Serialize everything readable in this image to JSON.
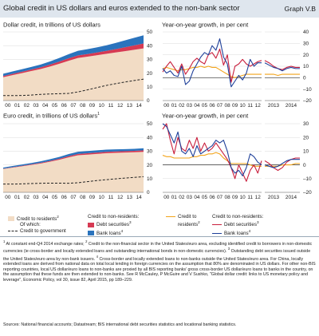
{
  "header": {
    "title": "Global credit in US dollars and euros extended to the non-bank sector",
    "graph_id": "Graph V.B"
  },
  "colors": {
    "credit_to_residents": "#f2dcc5",
    "debt_securities": "#d63a53",
    "bank_loans": "#2a73bd",
    "government": "#222222",
    "growth_residents": "#f2a31a",
    "growth_debt": "#c81e3c",
    "growth_loans": "#1e3f99",
    "zero_line": "#333333"
  },
  "chart_data": [
    {
      "id": "dollar-levels",
      "type": "area",
      "title": "Dollar credit, in trillions of US dollars",
      "title_sup": "",
      "ylim": [
        0,
        50
      ],
      "yticks": [
        "0",
        "10",
        "20",
        "30",
        "40",
        "50"
      ],
      "xticks": [
        "00",
        "01",
        "02",
        "03",
        "04",
        "05",
        "06",
        "07",
        "08",
        "09",
        "10",
        "11",
        "12",
        "13",
        "14"
      ],
      "x": [
        2000,
        2001,
        2002,
        2003,
        2004,
        2005,
        2006,
        2007,
        2008,
        2009,
        2010,
        2011,
        2012,
        2013,
        2014,
        2015
      ],
      "series": [
        {
          "key": "residents",
          "values": [
            17.0,
            18.5,
            20.0,
            21.5,
            23.0,
            24.8,
            26.8,
            29.0,
            31.0,
            32.0,
            33.0,
            34.0,
            35.0,
            36.0,
            37.0,
            38.0
          ]
        },
        {
          "key": "debt",
          "values": [
            0.9,
            1.0,
            1.0,
            1.1,
            1.2,
            1.4,
            1.6,
            1.8,
            1.9,
            1.9,
            2.0,
            2.2,
            2.4,
            2.8,
            3.2,
            3.6
          ]
        },
        {
          "key": "loans",
          "values": [
            1.6,
            1.7,
            1.8,
            1.9,
            2.0,
            2.3,
            2.6,
            3.0,
            3.4,
            3.5,
            3.7,
            4.0,
            4.5,
            5.0,
            5.5,
            5.9
          ]
        },
        {
          "key": "government",
          "values": [
            3.6,
            3.6,
            3.7,
            4.0,
            4.5,
            4.8,
            5.0,
            5.2,
            6.3,
            7.8,
            9.4,
            11.0,
            12.3,
            13.5,
            14.6,
            15.6
          ]
        }
      ]
    },
    {
      "id": "dollar-growth",
      "type": "line",
      "title": "Year-on-year growth, in per cent",
      "title_sup": "",
      "ylim": [
        -20,
        40
      ],
      "yticks": [
        "–20",
        "–10",
        "0",
        "10",
        "20",
        "30",
        "40"
      ],
      "xticks": [
        "00",
        "01",
        "02",
        "03",
        "04",
        "05",
        "06",
        "07",
        "08",
        "09",
        "10",
        "11",
        "12"
      ],
      "xticks2": [
        "2013",
        "2014"
      ],
      "x": [
        2000.0,
        2000.5,
        2001.0,
        2001.5,
        2002.0,
        2002.5,
        2003.0,
        2003.5,
        2004.0,
        2004.5,
        2005.0,
        2005.5,
        2006.0,
        2006.5,
        2007.0,
        2007.5,
        2008.0,
        2008.5,
        2009.0,
        2009.5,
        2010.0,
        2010.5,
        2011.0,
        2011.5,
        2012.0,
        2012.5,
        2013.0
      ],
      "x2": [
        2013.0,
        2013.25,
        2013.5,
        2013.75,
        2014.0,
        2014.25,
        2014.5,
        2014.75,
        2015.0
      ],
      "series": [
        {
          "key": "residents",
          "values": [
            8,
            9,
            8,
            7,
            6,
            7,
            7,
            8,
            9,
            9,
            10,
            9,
            10,
            9,
            9,
            7,
            5,
            3,
            1,
            0,
            1,
            2,
            3,
            3,
            3,
            3,
            3
          ]
        },
        {
          "key": "debt",
          "values": [
            5,
            10,
            14,
            9,
            4,
            12,
            3,
            8,
            14,
            17,
            14,
            12,
            20,
            22,
            17,
            25,
            11,
            20,
            -4,
            10,
            12,
            16,
            12,
            10,
            12,
            14,
            15
          ]
        },
        {
          "key": "loans",
          "values": [
            8,
            4,
            6,
            2,
            1,
            10,
            -6,
            -3,
            6,
            12,
            18,
            22,
            20,
            28,
            24,
            34,
            18,
            12,
            -8,
            -3,
            2,
            -2,
            4,
            16,
            10,
            13,
            13
          ]
        }
      ],
      "series2": [
        {
          "key": "residents",
          "values": [
            3,
            3,
            3,
            2,
            3,
            3,
            3,
            3,
            3
          ]
        },
        {
          "key": "debt",
          "values": [
            15,
            13,
            10,
            8,
            7,
            9,
            10,
            9,
            9
          ]
        },
        {
          "key": "loans",
          "values": [
            13,
            11,
            9,
            8,
            6,
            8,
            9,
            8,
            8
          ]
        }
      ]
    },
    {
      "id": "euro-levels",
      "type": "area",
      "title": "Euro credit, in trillions of US dollars",
      "title_sup": "1",
      "ylim": [
        0,
        50
      ],
      "yticks": [
        "0",
        "10",
        "20",
        "30",
        "40",
        "50"
      ],
      "xticks": [
        "00",
        "01",
        "02",
        "03",
        "04",
        "05",
        "06",
        "07",
        "08",
        "09",
        "10",
        "11",
        "12",
        "13",
        "14"
      ],
      "x": [
        2000,
        2001,
        2002,
        2003,
        2004,
        2005,
        2006,
        2007,
        2008,
        2009,
        2010,
        2011,
        2012,
        2013,
        2014,
        2015
      ],
      "series": [
        {
          "key": "residents",
          "values": [
            17.0,
            18.0,
            19.0,
            20.0,
            21.0,
            22.3,
            23.8,
            25.5,
            27.0,
            27.5,
            28.0,
            28.5,
            28.8,
            29.0,
            29.2,
            29.5
          ]
        },
        {
          "key": "debt",
          "values": [
            0.2,
            0.3,
            0.3,
            0.4,
            0.5,
            0.6,
            0.7,
            0.9,
            1.0,
            1.0,
            1.0,
            1.0,
            1.0,
            1.0,
            1.0,
            1.1
          ]
        },
        {
          "key": "loans",
          "values": [
            0.8,
            0.9,
            1.0,
            1.0,
            1.1,
            1.2,
            1.3,
            1.5,
            1.6,
            1.6,
            1.6,
            1.6,
            1.5,
            1.5,
            1.5,
            1.5
          ]
        },
        {
          "key": "government",
          "values": [
            6.0,
            6.0,
            6.2,
            6.4,
            6.6,
            6.7,
            6.7,
            6.6,
            7.0,
            7.8,
            8.6,
            9.2,
            9.8,
            10.4,
            10.9,
            11.4
          ]
        }
      ]
    },
    {
      "id": "euro-growth",
      "type": "line",
      "title": "Year-on-year growth, in per cent",
      "title_sup": "",
      "ylim": [
        -20,
        30
      ],
      "yticks": [
        "–20",
        "–10",
        "0",
        "10",
        "20",
        "30"
      ],
      "xticks": [
        "00",
        "01",
        "02",
        "03",
        "04",
        "05",
        "06",
        "07",
        "08",
        "09",
        "10",
        "11",
        "12"
      ],
      "xticks2": [
        "2013",
        "2014"
      ],
      "x": [
        2000.0,
        2000.5,
        2001.0,
        2001.5,
        2002.0,
        2002.5,
        2003.0,
        2003.5,
        2004.0,
        2004.5,
        2005.0,
        2005.5,
        2006.0,
        2006.5,
        2007.0,
        2007.5,
        2008.0,
        2008.5,
        2009.0,
        2009.5,
        2010.0,
        2010.5,
        2011.0,
        2011.5,
        2012.0,
        2012.5,
        2013.0
      ],
      "x2": [
        2013.0,
        2013.25,
        2013.5,
        2013.75,
        2014.0,
        2014.25,
        2014.5,
        2014.75,
        2015.0
      ],
      "series": [
        {
          "key": "residents",
          "values": [
            7,
            6,
            6,
            5,
            5,
            5,
            5,
            5,
            6,
            6,
            7,
            7,
            8,
            8,
            9,
            8,
            5,
            3,
            1,
            1,
            1,
            1,
            1,
            0,
            -1,
            -1,
            -1
          ]
        },
        {
          "key": "debt",
          "values": [
            26,
            30,
            18,
            8,
            20,
            12,
            10,
            18,
            12,
            20,
            10,
            16,
            10,
            12,
            16,
            12,
            8,
            4,
            -2,
            -10,
            0,
            -6,
            -12,
            -4,
            0,
            -6,
            3
          ]
        },
        {
          "key": "loans",
          "values": [
            30,
            28,
            22,
            16,
            24,
            10,
            8,
            12,
            6,
            14,
            8,
            10,
            12,
            14,
            18,
            16,
            18,
            10,
            -2,
            -6,
            -4,
            -8,
            -2,
            8,
            6,
            2,
            0
          ]
        }
      ],
      "series2": [
        {
          "key": "residents",
          "values": [
            -1,
            -1,
            -1,
            -1,
            0,
            0,
            0,
            1,
            1
          ]
        },
        {
          "key": "debt",
          "values": [
            3,
            1,
            -2,
            -4,
            -2,
            2,
            4,
            5,
            5
          ]
        },
        {
          "key": "loans",
          "values": [
            0,
            -1,
            -2,
            -1,
            1,
            3,
            4,
            4,
            4
          ]
        }
      ]
    }
  ],
  "legend_left": {
    "residents": "Credit to residents",
    "residents_sup": "2",
    "of_which": "Of which:",
    "government": "Credit to government",
    "nonresidents_heading": "Credit to non-residents:",
    "debt": "Debt securities",
    "debt_sup": "3",
    "loans": "Bank loans",
    "loans_sup": "4"
  },
  "legend_right": {
    "residents_1": "Credit to",
    "residents_2": "residents",
    "residents_sup": "2",
    "nonresidents_heading": "Credit to non-residents:",
    "debt": "Debt securities",
    "debt_sup": "3",
    "loans": "Bank loans",
    "loans_sup": "4"
  },
  "footnotes": {
    "n1": "At constant end-Q4 2014 exchange rates;",
    "n2": "Credit to the non-financial sector in the United States/euro area, excluding identified credit to borrowers in non-domestic currencies (ie cross-border and locally extended loans and outstanding international bonds in non-domestic currencies).",
    "n3": "Outstanding debt securities issued outside the United States/euro area by non-bank issuers.",
    "n4": "Cross-border and locally extended loans to non-banks outside the United States/euro area. For China, locally extended loans are derived from national data on total local lending in foreign currencies on the assumption that 80% are denominated in US dollars. For other non-BIS reporting countries, local US dollar/euro loans to non-banks are proxied by all BIS reporting banks' gross cross-border US dollar/euro loans to banks in the country, on the assumption that these funds are then extended to non-banks. See R McCauley, P McGuire and V Sushko, \"Global dollar credit: links to US monetary policy and leverage\", Economic Policy, vol 30, issue 82, April 2015, pp 189–229.",
    "sources": "Sources: National financial accounts; Datastream; BIS international debt securities statistics and locational banking statistics."
  }
}
